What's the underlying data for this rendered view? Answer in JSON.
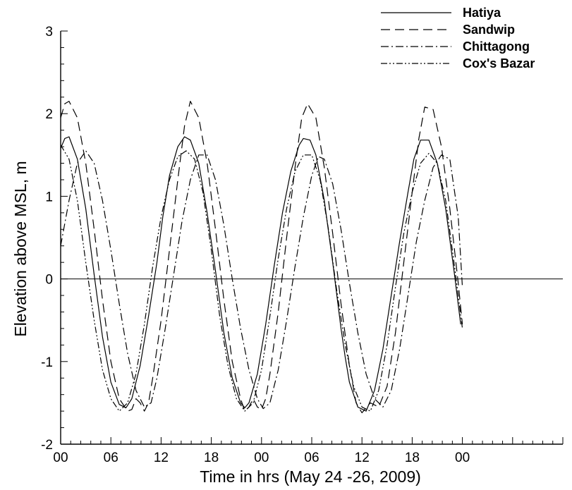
{
  "chart_data": {
    "type": "line",
    "title": "",
    "xlabel": "Time in hrs (May 24 -26, 2009)",
    "ylabel": "Elevation above MSL, m",
    "xlim": [
      0,
      60
    ],
    "ylim": [
      -2,
      3
    ],
    "x_ticks": [
      0,
      6,
      12,
      18,
      24,
      30,
      36,
      42,
      48,
      54,
      60
    ],
    "x_tick_labels": [
      "00",
      "06",
      "12",
      "18",
      "00",
      "06",
      "12",
      "18",
      "00"
    ],
    "x_tick_label_positions": [
      0,
      6,
      12,
      18,
      24,
      30,
      36,
      42,
      48
    ],
    "y_ticks": [
      -2,
      -1,
      0,
      1,
      2,
      3
    ],
    "y_tick_labels": [
      "-2",
      "-1",
      "0",
      "1",
      "2",
      "3"
    ],
    "zero_line": true,
    "grid": false,
    "legend_position": "top-right",
    "series": [
      {
        "name": "Hatiya",
        "dash": "solid",
        "x": [
          0.0,
          0.5,
          1.0,
          2.0,
          3.0,
          4.0,
          5.0,
          6.0,
          7.0,
          7.8,
          8.5,
          9.5,
          10.5,
          11.5,
          12.2,
          13.0,
          14.0,
          14.8,
          15.5,
          16.5,
          17.5,
          18.5,
          19.5,
          20.5,
          21.5,
          22.0,
          22.5,
          23.5,
          24.5,
          25.5,
          26.5,
          27.5,
          28.5,
          29.0,
          29.8,
          30.5,
          31.5,
          32.5,
          33.5,
          34.0,
          34.5,
          35.5,
          36.5,
          37.5,
          38.5,
          39.5,
          40.5,
          41.5,
          42.2,
          43.0,
          44.0,
          45.0,
          46.0,
          47.0,
          47.8
        ],
        "y": [
          1.58,
          1.7,
          1.72,
          1.45,
          0.85,
          0.05,
          -0.7,
          -1.25,
          -1.52,
          -1.56,
          -1.45,
          -1.05,
          -0.45,
          0.2,
          0.75,
          1.25,
          1.6,
          1.72,
          1.68,
          1.4,
          0.8,
          0.1,
          -0.65,
          -1.2,
          -1.5,
          -1.56,
          -1.5,
          -1.15,
          -0.55,
          0.15,
          0.8,
          1.3,
          1.62,
          1.7,
          1.68,
          1.5,
          0.95,
          0.2,
          -0.6,
          -0.95,
          -1.25,
          -1.55,
          -1.6,
          -1.35,
          -0.85,
          -0.2,
          0.45,
          1.05,
          1.45,
          1.68,
          1.68,
          1.4,
          0.85,
          0.1,
          -0.55
        ]
      },
      {
        "name": "Sandwip",
        "dash": "long",
        "x": [
          0.0,
          0.5,
          1.0,
          2.0,
          3.0,
          4.0,
          5.0,
          6.0,
          7.0,
          8.0,
          8.5,
          9.0,
          9.5,
          10.0,
          10.5,
          11.0,
          12.0,
          13.0,
          14.0,
          14.8,
          15.5,
          16.5,
          17.5,
          18.5,
          19.5,
          20.5,
          21.5,
          22.0,
          22.5,
          23.0,
          23.5,
          24.0,
          24.5,
          25.0,
          26.0,
          27.0,
          28.0,
          28.8,
          29.5,
          30.5,
          31.5,
          32.5,
          33.5,
          34.5,
          35.3,
          36.0,
          37.0,
          38.0,
          39.0,
          40.0,
          41.0,
          42.0,
          42.8,
          43.5,
          44.5,
          45.5,
          46.5,
          47.5,
          48.0
        ],
        "y": [
          1.95,
          2.12,
          2.15,
          1.95,
          1.4,
          0.6,
          -0.25,
          -1.0,
          -1.45,
          -1.6,
          -1.58,
          -1.45,
          -1.5,
          -1.6,
          -1.5,
          -1.2,
          -0.5,
          0.35,
          1.2,
          1.85,
          2.15,
          1.95,
          1.4,
          0.6,
          -0.25,
          -1.0,
          -1.45,
          -1.6,
          -1.55,
          -1.45,
          -1.55,
          -1.58,
          -1.45,
          -1.15,
          -0.4,
          0.5,
          1.35,
          1.95,
          2.12,
          1.95,
          1.35,
          0.55,
          -0.3,
          -1.05,
          -1.5,
          -1.62,
          -1.5,
          -1.55,
          -1.3,
          -0.65,
          0.2,
          1.05,
          1.7,
          2.08,
          2.05,
          1.6,
          0.85,
          -0.05,
          -0.55
        ]
      },
      {
        "name": "Chittagong",
        "dash": "dash-dot",
        "x": [
          0.0,
          1.0,
          2.0,
          3.0,
          4.0,
          5.0,
          6.0,
          7.0,
          8.0,
          9.0,
          10.0,
          10.8,
          11.5,
          12.5,
          13.5,
          14.5,
          15.5,
          16.5,
          17.5,
          18.5,
          19.5,
          20.5,
          21.5,
          22.5,
          23.5,
          24.2,
          25.0,
          26.0,
          27.0,
          28.0,
          29.0,
          30.0,
          30.8,
          31.5,
          32.5,
          33.5,
          34.5,
          35.5,
          36.5,
          37.5,
          38.5,
          39.5,
          40.5,
          41.5,
          42.5,
          43.5,
          44.5,
          45.5,
          46.5,
          47.5,
          48.0
        ],
        "y": [
          0.4,
          0.95,
          1.4,
          1.55,
          1.4,
          0.95,
          0.35,
          -0.3,
          -0.9,
          -1.35,
          -1.55,
          -1.5,
          -1.2,
          -0.6,
          0.05,
          0.7,
          1.2,
          1.5,
          1.5,
          1.2,
          0.65,
          0.0,
          -0.6,
          -1.1,
          -1.45,
          -1.57,
          -1.5,
          -1.1,
          -0.5,
          0.15,
          0.75,
          1.25,
          1.48,
          1.45,
          1.15,
          0.6,
          -0.05,
          -0.65,
          -1.15,
          -1.45,
          -1.55,
          -1.35,
          -0.85,
          -0.2,
          0.45,
          0.95,
          1.35,
          1.5,
          1.45,
          0.75,
          -0.1
        ]
      },
      {
        "name": "Cox's Bazar",
        "dash": "dash-dot-dot",
        "x": [
          0.0,
          1.0,
          2.0,
          3.0,
          4.0,
          5.0,
          6.0,
          7.0,
          8.0,
          9.0,
          10.0,
          11.0,
          12.0,
          13.0,
          14.0,
          15.0,
          16.0,
          17.0,
          18.0,
          19.0,
          20.0,
          21.0,
          22.0,
          23.0,
          24.0,
          25.0,
          26.0,
          27.0,
          28.0,
          29.0,
          30.0,
          31.0,
          32.0,
          33.0,
          34.0,
          35.0,
          36.0,
          37.0,
          38.0,
          39.0,
          40.0,
          41.0,
          42.0,
          43.0,
          44.0,
          45.0,
          46.0,
          47.0,
          48.0
        ],
        "y": [
          1.62,
          1.45,
          0.95,
          0.2,
          -0.5,
          -1.1,
          -1.45,
          -1.6,
          -1.5,
          -1.15,
          -0.55,
          0.15,
          0.75,
          1.2,
          1.48,
          1.55,
          1.45,
          1.05,
          0.35,
          -0.45,
          -1.05,
          -1.45,
          -1.6,
          -1.5,
          -1.1,
          -0.45,
          0.25,
          0.85,
          1.3,
          1.5,
          1.5,
          1.2,
          0.6,
          -0.15,
          -0.8,
          -1.3,
          -1.55,
          -1.6,
          -1.35,
          -0.8,
          -0.1,
          0.55,
          1.05,
          1.4,
          1.52,
          1.4,
          0.95,
          0.2,
          -0.6
        ]
      }
    ]
  }
}
